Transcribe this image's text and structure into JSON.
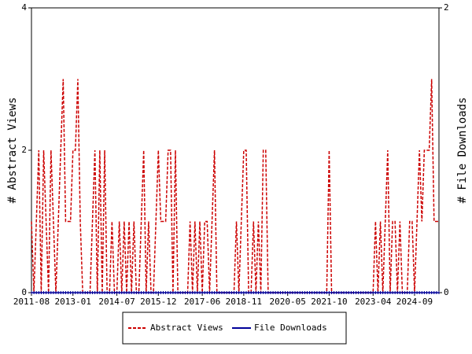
{
  "chart_data": {
    "type": "line",
    "ylabel": "# Abstract Views",
    "y2label": "# File Downloads",
    "ylim": [
      0,
      4
    ],
    "yticks": [
      0,
      2,
      4
    ],
    "y2lim": [
      0,
      2
    ],
    "y2ticks": [
      0,
      2
    ],
    "legend": "bottom",
    "categories": [
      "2011-08",
      null,
      null,
      null,
      null,
      null,
      null,
      null,
      null,
      null,
      null,
      null,
      null,
      null,
      null,
      null,
      null,
      "2013-01",
      null,
      null,
      null,
      null,
      null,
      null,
      null,
      null,
      null,
      null,
      null,
      null,
      null,
      null,
      null,
      null,
      null,
      "2014-07",
      null,
      null,
      null,
      null,
      null,
      null,
      null,
      null,
      null,
      null,
      null,
      null,
      null,
      null,
      null,
      null,
      "2015-12",
      null,
      null,
      null,
      null,
      null,
      null,
      null,
      null,
      null,
      null,
      null,
      null,
      null,
      null,
      null,
      null,
      null,
      "2017-06",
      null,
      null,
      null,
      null,
      null,
      null,
      null,
      null,
      null,
      null,
      null,
      null,
      null,
      null,
      null,
      null,
      "2018-11",
      null,
      null,
      null,
      null,
      null,
      null,
      null,
      null,
      null,
      null,
      null,
      null,
      null,
      null,
      null,
      null,
      null,
      "2020-05",
      null,
      null,
      null,
      null,
      null,
      null,
      null,
      null,
      null,
      null,
      null,
      null,
      null,
      null,
      null,
      null,
      "2021-10",
      null,
      null,
      null,
      null,
      null,
      null,
      null,
      null,
      null,
      null,
      null,
      null,
      null,
      null,
      null,
      null,
      null,
      "2023-04",
      null,
      null,
      null,
      null,
      null,
      null,
      null,
      null,
      null,
      null,
      null,
      null,
      null,
      null,
      null,
      null,
      "2024-09",
      null,
      null,
      null,
      null,
      null,
      null,
      null,
      null,
      null,
      null
    ],
    "series": [
      {
        "name": "Abstract Views",
        "color": "#cc0000",
        "dashed": true,
        "values": [
          1,
          0,
          1,
          2,
          0,
          2,
          1,
          0,
          2,
          1,
          0,
          1,
          2,
          3,
          1,
          1,
          1,
          2,
          2,
          3,
          1,
          0,
          0,
          0,
          0,
          1,
          2,
          0,
          2,
          0,
          2,
          0,
          0,
          1,
          0,
          0,
          1,
          0,
          1,
          0,
          1,
          0,
          1,
          0,
          0,
          1,
          2,
          0,
          1,
          0,
          0,
          1,
          2,
          1,
          1,
          1,
          2,
          2,
          0,
          2,
          0,
          0,
          0,
          0,
          0,
          1,
          0,
          1,
          0,
          1,
          0,
          1,
          1,
          0,
          1,
          2,
          0,
          0,
          0,
          0,
          0,
          0,
          0,
          0,
          1,
          0,
          1,
          2,
          2,
          0,
          0,
          1,
          0,
          1,
          0,
          2,
          2,
          0,
          0,
          0,
          0,
          0,
          0,
          0,
          0,
          0,
          0,
          0,
          0,
          0,
          0,
          0,
          0,
          0,
          0,
          0,
          0,
          0,
          0,
          0,
          0,
          0,
          2,
          0,
          0,
          0,
          0,
          0,
          0,
          0,
          0,
          0,
          0,
          0,
          0,
          0,
          0,
          0,
          0,
          0,
          0,
          1,
          0,
          1,
          0,
          1,
          2,
          0,
          1,
          1,
          0,
          1,
          0,
          0,
          0,
          1,
          1,
          0,
          1,
          2,
          1,
          2,
          2,
          2,
          3,
          1,
          1,
          1
        ]
      },
      {
        "name": "File Downloads",
        "color": "#000099",
        "axis": "y2",
        "dashed": false,
        "values": [
          0,
          0,
          0,
          0,
          0,
          0,
          0,
          0,
          0,
          0,
          0,
          0,
          0,
          0,
          0,
          0,
          0,
          0,
          0,
          0,
          0,
          0,
          0,
          0,
          0,
          0,
          0,
          0,
          0,
          0,
          0,
          0,
          0,
          0,
          0,
          0,
          0,
          0,
          0,
          0,
          0,
          0,
          0,
          0,
          0,
          0,
          0,
          0,
          0,
          0,
          0,
          0,
          0,
          0,
          0,
          0,
          0,
          0,
          0,
          0,
          0,
          0,
          0,
          0,
          0,
          0,
          0,
          0,
          0,
          0,
          0,
          0,
          0,
          0,
          0,
          0,
          0,
          0,
          0,
          0,
          0,
          0,
          0,
          0,
          0,
          0,
          0,
          0,
          0,
          0,
          0,
          0,
          0,
          0,
          0,
          0,
          0,
          0,
          0,
          0,
          0,
          0,
          0,
          0,
          0,
          0,
          0,
          0,
          0,
          0,
          0,
          0,
          0,
          0,
          0,
          0,
          0,
          0,
          0,
          0,
          0,
          0,
          0,
          0,
          0,
          0,
          0,
          0,
          0,
          0,
          0,
          0,
          0,
          0,
          0,
          0,
          0,
          0,
          0,
          0,
          0,
          0,
          0,
          0,
          0,
          0,
          0,
          0,
          0,
          0,
          0,
          0,
          0,
          0,
          0,
          0,
          0,
          0,
          0,
          0,
          0,
          0,
          0,
          0,
          0,
          0,
          0,
          0
        ]
      }
    ]
  }
}
